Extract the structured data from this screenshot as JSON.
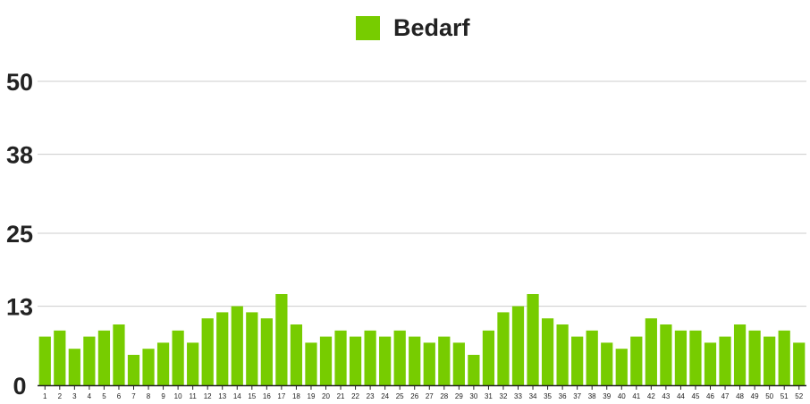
{
  "chart_data": {
    "type": "bar",
    "title": "",
    "xlabel": "",
    "ylabel": "",
    "ylim": [
      0,
      50
    ],
    "yticks": [
      "0",
      "13",
      "25",
      "38",
      "50"
    ],
    "grid": true,
    "legend_position": "top-center",
    "categories": [
      "1",
      "2",
      "3",
      "4",
      "5",
      "6",
      "7",
      "8",
      "9",
      "10",
      "11",
      "12",
      "13",
      "14",
      "15",
      "16",
      "17",
      "18",
      "19",
      "20",
      "21",
      "22",
      "23",
      "24",
      "25",
      "26",
      "27",
      "28",
      "29",
      "30",
      "31",
      "32",
      "33",
      "34",
      "35",
      "36",
      "37",
      "38",
      "39",
      "40",
      "41",
      "42",
      "43",
      "44",
      "45",
      "46",
      "47",
      "48",
      "49",
      "50",
      "51",
      "52"
    ],
    "series": [
      {
        "name": "Bedarf",
        "color": "#77cc00",
        "values": [
          8,
          9,
          6,
          8,
          9,
          10,
          5,
          6,
          7,
          9,
          7,
          11,
          12,
          13,
          12,
          11,
          15,
          10,
          7,
          8,
          9,
          8,
          9,
          8,
          9,
          8,
          7,
          8,
          7,
          5,
          9,
          12,
          13,
          15,
          11,
          10,
          8,
          9,
          7,
          6,
          8,
          11,
          10,
          9,
          9,
          7,
          8,
          10,
          9,
          8,
          9,
          7
        ]
      }
    ]
  }
}
